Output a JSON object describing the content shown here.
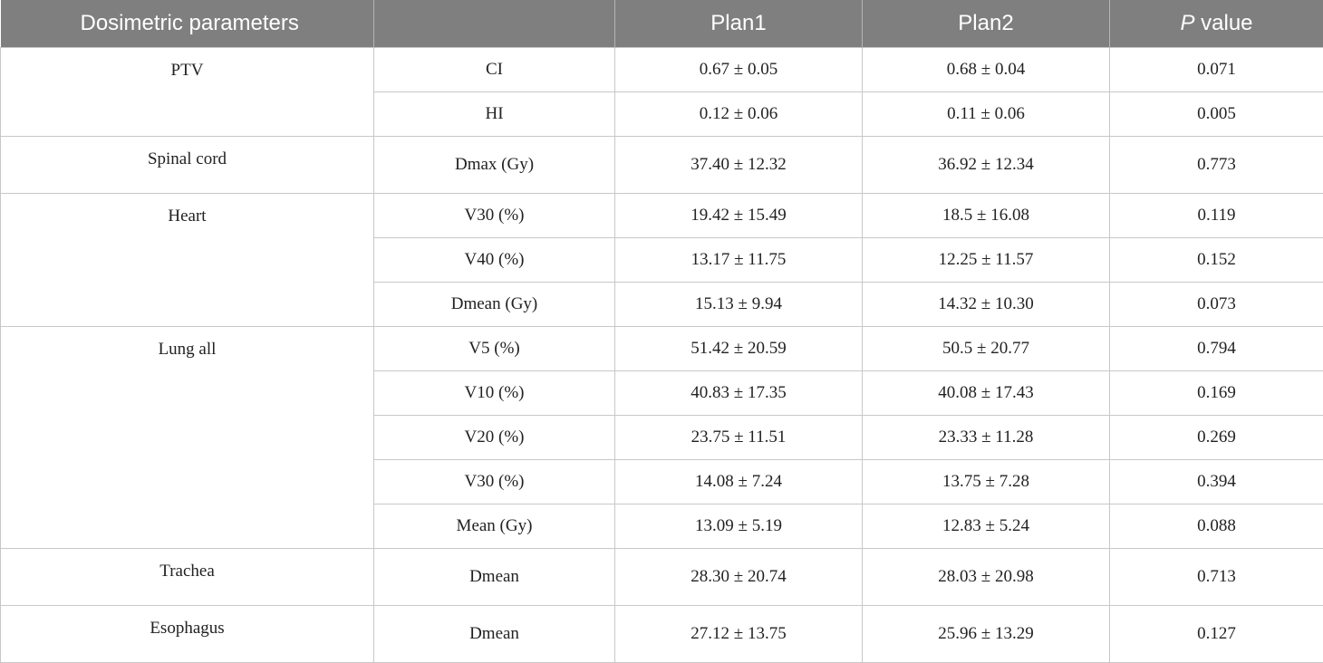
{
  "table": {
    "header": [
      "Dosimetric parameters",
      "Plan1",
      "Plan2",
      "P value"
    ],
    "groups": [
      {
        "organ": "PTV",
        "rows": [
          [
            "CI",
            "0.67 ± 0.05",
            "0.68 ± 0.04",
            "0.071"
          ],
          [
            "HI",
            "0.12 ± 0.06",
            "0.11 ± 0.06",
            "0.005"
          ]
        ]
      },
      {
        "organ": "Spinal cord",
        "rows": [
          [
            "Dmax (Gy)",
            "37.40 ± 12.32",
            "36.92 ± 12.34",
            "0.773"
          ]
        ]
      },
      {
        "organ": "Heart",
        "rows": [
          [
            "V30 (%)",
            "19.42 ± 15.49",
            "18.5 ± 16.08",
            "0.119"
          ],
          [
            "V40 (%)",
            "13.17 ± 11.75",
            "12.25 ± 11.57",
            "0.152"
          ],
          [
            "Dmean (Gy)",
            "15.13 ± 9.94",
            "14.32 ± 10.30",
            "0.073"
          ]
        ]
      },
      {
        "organ": "Lung all",
        "rows": [
          [
            "V5 (%)",
            "51.42 ± 20.59",
            "50.5 ± 20.77",
            "0.794"
          ],
          [
            "V10 (%)",
            "40.83 ± 17.35",
            "40.08 ± 17.43",
            "0.169"
          ],
          [
            "V20 (%)",
            "23.75 ± 11.51",
            "23.33 ± 11.28",
            "0.269"
          ],
          [
            "V30 (%)",
            "14.08 ± 7.24",
            "13.75 ± 7.28",
            "0.394"
          ],
          [
            "Mean (Gy)",
            "13.09 ± 5.19",
            "12.83 ± 5.24",
            "0.088"
          ]
        ]
      },
      {
        "organ": "Trachea",
        "rows": [
          [
            "Dmean",
            "28.30 ± 20.74",
            "28.03 ± 20.98",
            "0.713"
          ]
        ]
      },
      {
        "organ": "Esophagus",
        "rows": [
          [
            "Dmean",
            "27.12 ± 13.75",
            "25.96 ± 13.29",
            "0.127"
          ]
        ]
      }
    ]
  }
}
